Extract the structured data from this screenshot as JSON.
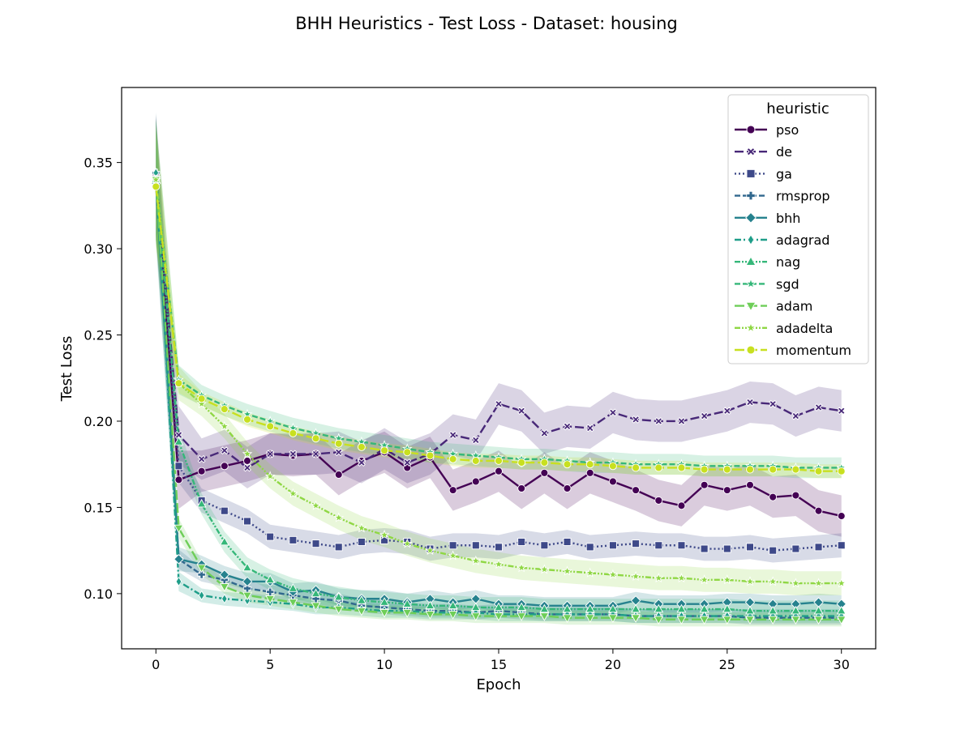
{
  "chart_data": {
    "type": "line",
    "title": "BHH Heuristics - Test Loss - Dataset: housing",
    "xlabel": "Epoch",
    "ylabel": "Test Loss",
    "xlim": [
      -1.5,
      31.5
    ],
    "ylim": [
      0.068,
      0.3935
    ],
    "xticks": [
      0,
      5,
      10,
      15,
      20,
      25,
      30
    ],
    "yticks": [
      0.1,
      0.15,
      0.2,
      0.25,
      0.3,
      0.35
    ],
    "ytick_labels": [
      "0.10",
      "0.15",
      "0.20",
      "0.25",
      "0.30",
      "0.35"
    ],
    "grid": false,
    "legend_title": "heuristic",
    "legend_position": "top-right",
    "x": [
      0,
      1,
      2,
      3,
      4,
      5,
      6,
      7,
      8,
      9,
      10,
      11,
      12,
      13,
      14,
      15,
      16,
      17,
      18,
      19,
      20,
      21,
      22,
      23,
      24,
      25,
      26,
      27,
      28,
      29,
      30
    ],
    "series": [
      {
        "name": "pso",
        "color": "#440154",
        "marker": "circle",
        "dash": "solid",
        "band": 0.012,
        "values": [
          0.342,
          0.166,
          0.171,
          0.174,
          0.177,
          0.181,
          0.18,
          0.181,
          0.169,
          0.177,
          0.182,
          0.173,
          0.179,
          0.16,
          0.165,
          0.171,
          0.161,
          0.17,
          0.161,
          0.17,
          0.165,
          0.16,
          0.154,
          0.151,
          0.163,
          0.16,
          0.163,
          0.156,
          0.157,
          0.148,
          0.145
        ]
      },
      {
        "name": "de",
        "color": "#482878",
        "marker": "x",
        "dash": "long",
        "band": 0.012,
        "values": [
          0.343,
          0.192,
          0.178,
          0.183,
          0.173,
          0.181,
          0.181,
          0.181,
          0.182,
          0.176,
          0.184,
          0.176,
          0.181,
          0.192,
          0.189,
          0.21,
          0.206,
          0.193,
          0.197,
          0.196,
          0.205,
          0.201,
          0.2,
          0.2,
          0.203,
          0.206,
          0.211,
          0.21,
          0.203,
          0.208,
          0.206
        ]
      },
      {
        "name": "ga",
        "color": "#3e4989",
        "marker": "square",
        "dash": "dot",
        "band": 0.007,
        "values": [
          0.34,
          0.174,
          0.154,
          0.148,
          0.142,
          0.133,
          0.131,
          0.129,
          0.127,
          0.13,
          0.131,
          0.13,
          0.126,
          0.128,
          0.128,
          0.127,
          0.13,
          0.128,
          0.13,
          0.127,
          0.128,
          0.129,
          0.128,
          0.128,
          0.126,
          0.126,
          0.127,
          0.125,
          0.126,
          0.127,
          0.128
        ]
      },
      {
        "name": "rmsprop",
        "color": "#31688e",
        "marker": "plus",
        "dash": "dash",
        "band": 0.004,
        "values": [
          0.344,
          0.12,
          0.111,
          0.108,
          0.103,
          0.101,
          0.099,
          0.097,
          0.096,
          0.093,
          0.092,
          0.091,
          0.09,
          0.09,
          0.089,
          0.09,
          0.089,
          0.088,
          0.088,
          0.088,
          0.088,
          0.087,
          0.087,
          0.087,
          0.087,
          0.087,
          0.086,
          0.086,
          0.086,
          0.086,
          0.086
        ]
      },
      {
        "name": "bhh",
        "color": "#26828e",
        "marker": "diamond",
        "dash": "solid",
        "band": 0.005,
        "values": [
          0.338,
          0.12,
          0.117,
          0.111,
          0.107,
          0.107,
          0.101,
          0.102,
          0.098,
          0.097,
          0.097,
          0.095,
          0.097,
          0.095,
          0.097,
          0.094,
          0.094,
          0.093,
          0.093,
          0.093,
          0.093,
          0.096,
          0.094,
          0.094,
          0.094,
          0.095,
          0.095,
          0.094,
          0.094,
          0.095,
          0.094
        ]
      },
      {
        "name": "adagrad",
        "color": "#1f9e89",
        "marker": "thin_diamond",
        "dash": "dashdot",
        "band": 0.004,
        "values": [
          0.344,
          0.107,
          0.099,
          0.097,
          0.096,
          0.095,
          0.094,
          0.092,
          0.092,
          0.091,
          0.09,
          0.09,
          0.089,
          0.089,
          0.089,
          0.088,
          0.088,
          0.088,
          0.088,
          0.088,
          0.088,
          0.087,
          0.087,
          0.087,
          0.087,
          0.087,
          0.087,
          0.087,
          0.087,
          0.087,
          0.087
        ]
      },
      {
        "name": "nag",
        "color": "#35b779",
        "marker": "triangle_up",
        "dash": "dashdotdot",
        "band": 0.006,
        "values": [
          0.34,
          0.188,
          0.152,
          0.13,
          0.115,
          0.108,
          0.103,
          0.1,
          0.098,
          0.096,
          0.095,
          0.094,
          0.093,
          0.093,
          0.092,
          0.092,
          0.092,
          0.091,
          0.091,
          0.091,
          0.091,
          0.091,
          0.091,
          0.091,
          0.091,
          0.091,
          0.09,
          0.09,
          0.09,
          0.09,
          0.09
        ]
      },
      {
        "name": "sgd",
        "color": "#35b779",
        "marker": "star",
        "dash": "dash",
        "band": 0.006,
        "values": [
          0.34,
          0.224,
          0.215,
          0.209,
          0.204,
          0.2,
          0.196,
          0.193,
          0.19,
          0.188,
          0.186,
          0.184,
          0.182,
          0.181,
          0.18,
          0.179,
          0.178,
          0.178,
          0.177,
          0.176,
          0.176,
          0.175,
          0.175,
          0.175,
          0.174,
          0.174,
          0.174,
          0.174,
          0.173,
          0.173,
          0.173
        ]
      },
      {
        "name": "adam",
        "color": "#6ece58",
        "marker": "triangle_down",
        "dash": "longdash",
        "band": 0.004,
        "values": [
          0.34,
          0.138,
          0.115,
          0.104,
          0.099,
          0.097,
          0.095,
          0.093,
          0.091,
          0.09,
          0.089,
          0.089,
          0.088,
          0.088,
          0.087,
          0.087,
          0.087,
          0.087,
          0.086,
          0.086,
          0.086,
          0.086,
          0.085,
          0.085,
          0.085,
          0.085,
          0.085,
          0.085,
          0.085,
          0.085,
          0.085
        ]
      },
      {
        "name": "adadelta",
        "color": "#8fd744",
        "marker": "star",
        "dash": "dashdotdot",
        "band": 0.007,
        "values": [
          0.34,
          0.222,
          0.21,
          0.197,
          0.181,
          0.168,
          0.158,
          0.151,
          0.144,
          0.138,
          0.134,
          0.129,
          0.125,
          0.122,
          0.119,
          0.117,
          0.115,
          0.114,
          0.113,
          0.112,
          0.111,
          0.11,
          0.109,
          0.109,
          0.108,
          0.108,
          0.107,
          0.107,
          0.106,
          0.106,
          0.106
        ]
      },
      {
        "name": "momentum",
        "color": "#c8e020",
        "marker": "circle",
        "dash": "longdash",
        "band": 0.004,
        "values": [
          0.336,
          0.222,
          0.213,
          0.207,
          0.201,
          0.197,
          0.193,
          0.19,
          0.187,
          0.185,
          0.183,
          0.182,
          0.18,
          0.178,
          0.177,
          0.177,
          0.176,
          0.176,
          0.175,
          0.175,
          0.174,
          0.173,
          0.173,
          0.173,
          0.172,
          0.172,
          0.172,
          0.172,
          0.172,
          0.171,
          0.171
        ]
      }
    ]
  }
}
